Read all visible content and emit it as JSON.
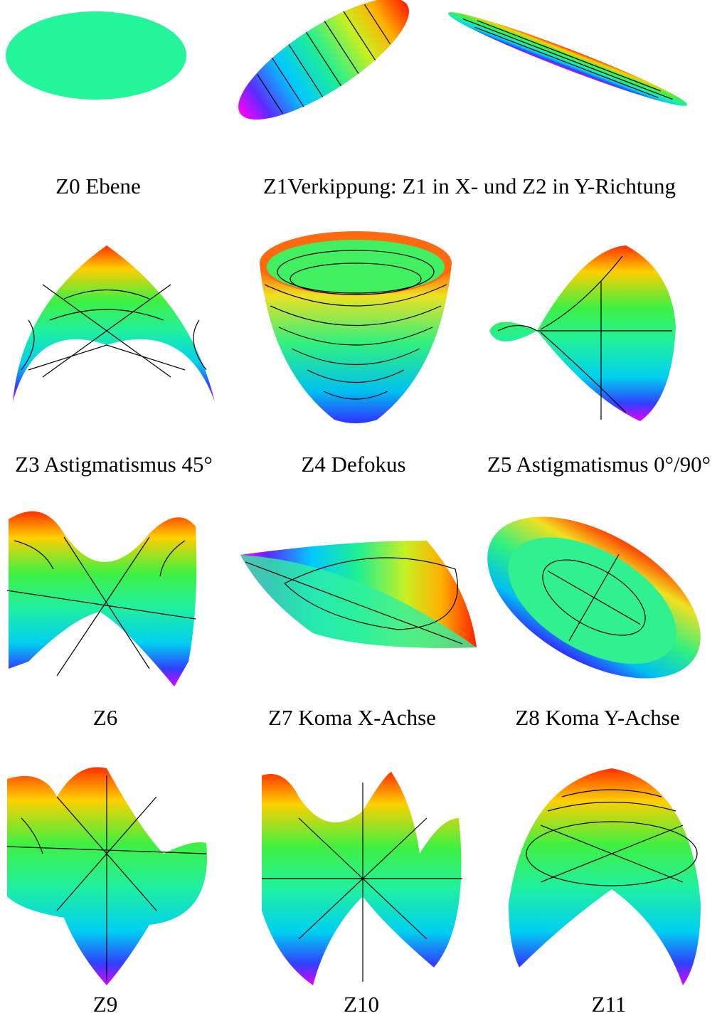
{
  "panels": [
    {
      "caption": "Z0 Ebene"
    },
    {
      "caption": "Z1Verkippung: Z1 in X- und Z2 in Y-Richtung"
    },
    {
      "caption": "Z3 Astigmatismus 45°"
    },
    {
      "caption": "Z4 Defokus"
    },
    {
      "caption": "Z5 Astigmatismus 0°/90°"
    },
    {
      "caption": "Z6"
    },
    {
      "caption": "Z7 Koma X-Achse"
    },
    {
      "caption": "Z8 Koma Y-Achse"
    },
    {
      "caption": "Z9"
    },
    {
      "caption": "Z10"
    },
    {
      "caption": "Z11"
    }
  ]
}
